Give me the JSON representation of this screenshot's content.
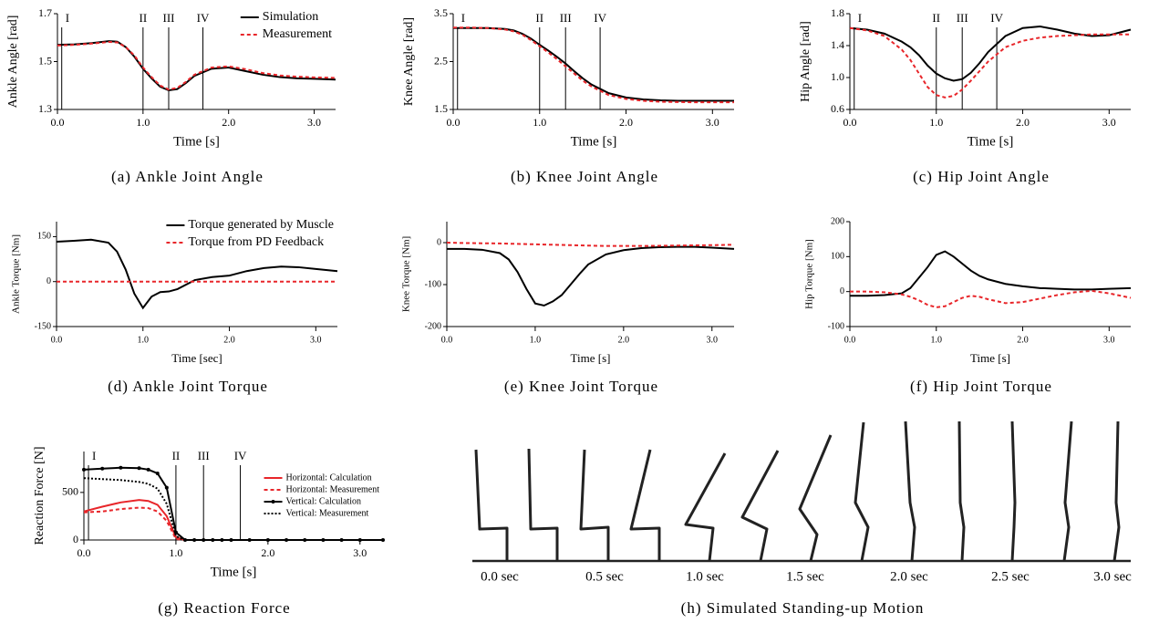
{
  "chart_data": [
    {
      "type": "line",
      "caption": "(a) Ankle Joint Angle",
      "xlabel": "Time [s]",
      "ylabel": "Ankle Angle [rad]",
      "x": [
        0,
        0.2,
        0.4,
        0.6,
        0.7,
        0.8,
        0.9,
        1.0,
        1.1,
        1.2,
        1.3,
        1.4,
        1.5,
        1.6,
        1.8,
        2.0,
        2.2,
        2.4,
        2.6,
        2.8,
        3.0,
        3.25
      ],
      "series": [
        {
          "name": "Simulation",
          "color": "#000000",
          "linestyle": "solid",
          "values": [
            1.57,
            1.572,
            1.577,
            1.585,
            1.583,
            1.56,
            1.52,
            1.47,
            1.43,
            1.395,
            1.38,
            1.385,
            1.41,
            1.44,
            1.47,
            1.475,
            1.46,
            1.445,
            1.435,
            1.43,
            1.428,
            1.425
          ]
        },
        {
          "name": "Measurement",
          "color": "#e8262a",
          "linestyle": "dashed",
          "values": [
            1.567,
            1.57,
            1.575,
            1.582,
            1.58,
            1.56,
            1.525,
            1.475,
            1.435,
            1.4,
            1.383,
            1.39,
            1.415,
            1.445,
            1.475,
            1.48,
            1.468,
            1.452,
            1.442,
            1.437,
            1.434,
            1.432
          ]
        }
      ],
      "xlim": [
        0,
        3.25
      ],
      "ylim": [
        1.3,
        1.7
      ],
      "xticks": [
        {
          "value": 0,
          "label": "0.0"
        },
        {
          "value": 1,
          "label": "1.0"
        },
        {
          "value": 2,
          "label": "2.0"
        },
        {
          "value": 3,
          "label": "3.0"
        }
      ],
      "yticks": [
        1.3,
        1.5,
        1.7
      ],
      "phases": [
        {
          "value": 0.05,
          "label": "I"
        },
        {
          "value": 1.0,
          "label": "II"
        },
        {
          "value": 1.3,
          "label": "III"
        },
        {
          "value": 1.7,
          "label": "IV"
        }
      ],
      "legend": "upper right"
    },
    {
      "type": "line",
      "caption": "(b) Knee Joint Angle",
      "xlabel": "Time [s]",
      "ylabel": "Knee Angle [rad]",
      "x": [
        0,
        0.2,
        0.4,
        0.6,
        0.7,
        0.8,
        0.9,
        1.0,
        1.1,
        1.2,
        1.3,
        1.4,
        1.5,
        1.6,
        1.8,
        2.0,
        2.2,
        2.4,
        2.6,
        2.8,
        3.0,
        3.25
      ],
      "series": [
        {
          "color": "#000000",
          "linestyle": "solid",
          "values": [
            3.2,
            3.2,
            3.2,
            3.18,
            3.15,
            3.08,
            2.98,
            2.85,
            2.73,
            2.6,
            2.46,
            2.3,
            2.15,
            2.02,
            1.84,
            1.75,
            1.71,
            1.69,
            1.68,
            1.68,
            1.68,
            1.68
          ]
        },
        {
          "color": "#e8262a",
          "linestyle": "dashed",
          "values": [
            3.21,
            3.21,
            3.2,
            3.17,
            3.13,
            3.06,
            2.95,
            2.82,
            2.69,
            2.55,
            2.4,
            2.25,
            2.1,
            1.98,
            1.8,
            1.72,
            1.68,
            1.66,
            1.655,
            1.65,
            1.65,
            1.65
          ]
        }
      ],
      "xlim": [
        0,
        3.25
      ],
      "ylim": [
        1.5,
        3.5
      ],
      "xticks": [
        {
          "value": 0,
          "label": "0.0"
        },
        {
          "value": 1,
          "label": "1.0"
        },
        {
          "value": 2,
          "label": "2.0"
        },
        {
          "value": 3,
          "label": "3.0"
        }
      ],
      "yticks": [
        1.5,
        2.5,
        3.5
      ],
      "phases": [
        {
          "value": 0.05,
          "label": "I"
        },
        {
          "value": 1.0,
          "label": "II"
        },
        {
          "value": 1.3,
          "label": "III"
        },
        {
          "value": 1.7,
          "label": "IV"
        }
      ]
    },
    {
      "type": "line",
      "caption": "(c) Hip Joint Angle",
      "xlabel": "Time [s]",
      "ylabel": "Hip Angle [rad]",
      "x": [
        0,
        0.2,
        0.4,
        0.6,
        0.7,
        0.8,
        0.9,
        1.0,
        1.1,
        1.2,
        1.3,
        1.4,
        1.5,
        1.6,
        1.8,
        2.0,
        2.2,
        2.4,
        2.6,
        2.8,
        3.0,
        3.25
      ],
      "series": [
        {
          "color": "#000000",
          "linestyle": "solid",
          "values": [
            1.62,
            1.6,
            1.55,
            1.45,
            1.38,
            1.28,
            1.15,
            1.05,
            0.99,
            0.96,
            0.98,
            1.06,
            1.18,
            1.32,
            1.52,
            1.62,
            1.64,
            1.6,
            1.55,
            1.52,
            1.53,
            1.6
          ]
        },
        {
          "color": "#e8262a",
          "linestyle": "dashed",
          "values": [
            1.62,
            1.59,
            1.52,
            1.35,
            1.22,
            1.05,
            0.88,
            0.78,
            0.75,
            0.77,
            0.85,
            0.96,
            1.08,
            1.2,
            1.38,
            1.46,
            1.5,
            1.52,
            1.53,
            1.54,
            1.54,
            1.54
          ]
        }
      ],
      "xlim": [
        0,
        3.25
      ],
      "ylim": [
        0.6,
        1.8
      ],
      "xticks": [
        {
          "value": 0,
          "label": "0.0"
        },
        {
          "value": 1,
          "label": "1.0"
        },
        {
          "value": 2,
          "label": "2.0"
        },
        {
          "value": 3,
          "label": "3.0"
        }
      ],
      "yticks": [
        0.6,
        {
          "value": 1,
          "label": "1.0"
        },
        1.4,
        1.8
      ],
      "phases": [
        {
          "value": 0.05,
          "label": "I"
        },
        {
          "value": 1.0,
          "label": "II"
        },
        {
          "value": 1.3,
          "label": "III"
        },
        {
          "value": 1.7,
          "label": "IV"
        }
      ]
    },
    {
      "type": "line",
      "caption": "(d) Ankle Joint Torque",
      "xlabel": "Time [sec]",
      "ylabel": "Ankle Torque [Nm]",
      "x": [
        0,
        0.2,
        0.4,
        0.6,
        0.7,
        0.8,
        0.9,
        1.0,
        1.1,
        1.2,
        1.3,
        1.4,
        1.5,
        1.6,
        1.8,
        2.0,
        2.2,
        2.4,
        2.6,
        2.8,
        3.0,
        3.25
      ],
      "series": [
        {
          "name": "Torque generated by Muscle",
          "color": "#000000",
          "linestyle": "solid",
          "values": [
            133,
            136,
            140,
            130,
            100,
            40,
            -40,
            -88,
            -50,
            -35,
            -33,
            -25,
            -10,
            5,
            15,
            20,
            35,
            45,
            50,
            48,
            42,
            35
          ]
        },
        {
          "name": "Torque from PD Feedback",
          "color": "#e8262a",
          "linestyle": "dashed",
          "values": [
            0,
            0,
            0,
            0,
            0,
            0,
            0,
            0,
            0,
            0,
            0,
            0,
            0,
            0,
            0,
            0,
            0,
            0,
            0,
            0,
            0,
            0
          ]
        }
      ],
      "xlim": [
        0,
        3.25
      ],
      "ylim": [
        -150,
        200
      ],
      "xticks": [
        {
          "value": 0,
          "label": "0.0"
        },
        {
          "value": 1,
          "label": "1.0"
        },
        {
          "value": 2,
          "label": "2.0"
        },
        {
          "value": 3,
          "label": "3.0"
        }
      ],
      "yticks": [
        -150,
        0,
        150
      ],
      "legend": "upper right"
    },
    {
      "type": "line",
      "caption": "(e) Knee Joint Torque",
      "xlabel": "Time [s]",
      "ylabel": "Knee Torque [Nm]",
      "x": [
        0,
        0.2,
        0.4,
        0.6,
        0.7,
        0.8,
        0.9,
        1.0,
        1.1,
        1.2,
        1.3,
        1.4,
        1.5,
        1.6,
        1.8,
        2.0,
        2.2,
        2.4,
        2.6,
        2.8,
        3.0,
        3.25
      ],
      "series": [
        {
          "color": "#000000",
          "linestyle": "solid",
          "values": [
            -15,
            -15,
            -17,
            -25,
            -40,
            -70,
            -110,
            -145,
            -150,
            -140,
            -125,
            -100,
            -75,
            -52,
            -28,
            -18,
            -13,
            -11,
            -10,
            -10,
            -12,
            -15
          ]
        },
        {
          "color": "#e8262a",
          "linestyle": "dashed",
          "values": [
            0,
            -1,
            -1.5,
            -2,
            -2.5,
            -3,
            -3.5,
            -4,
            -4.5,
            -5,
            -5.5,
            -6,
            -6.5,
            -7,
            -8,
            -8,
            -8,
            -7.5,
            -7,
            -6.5,
            -6,
            -5
          ]
        }
      ],
      "xlim": [
        0,
        3.25
      ],
      "ylim": [
        -200,
        50
      ],
      "xticks": [
        {
          "value": 0,
          "label": "0.0"
        },
        {
          "value": 1,
          "label": "1.0"
        },
        {
          "value": 2,
          "label": "2.0"
        },
        {
          "value": 3,
          "label": "3.0"
        }
      ],
      "yticks": [
        -200,
        -100,
        0
      ]
    },
    {
      "type": "line",
      "caption": "(f) Hip Joint Torque",
      "xlabel": "Time [s]",
      "ylabel": "Hip Torque [Nm]",
      "x": [
        0,
        0.2,
        0.4,
        0.6,
        0.7,
        0.8,
        0.9,
        1.0,
        1.1,
        1.2,
        1.3,
        1.4,
        1.5,
        1.6,
        1.8,
        2.0,
        2.2,
        2.4,
        2.6,
        2.8,
        3.0,
        3.25
      ],
      "series": [
        {
          "color": "#000000",
          "linestyle": "solid",
          "values": [
            -12,
            -12,
            -10,
            -5,
            10,
            40,
            70,
            105,
            115,
            100,
            80,
            60,
            45,
            35,
            22,
            15,
            10,
            8,
            6,
            6,
            8,
            10
          ]
        },
        {
          "color": "#e8262a",
          "linestyle": "dashed",
          "values": [
            0,
            0,
            -2,
            -8,
            -15,
            -25,
            -38,
            -45,
            -42,
            -30,
            -18,
            -12,
            -15,
            -22,
            -33,
            -30,
            -20,
            -10,
            -2,
            2,
            -5,
            -18
          ]
        }
      ],
      "xlim": [
        0,
        3.25
      ],
      "ylim": [
        -100,
        200
      ],
      "xticks": [
        {
          "value": 0,
          "label": "0.0"
        },
        {
          "value": 1,
          "label": "1.0"
        },
        {
          "value": 2,
          "label": "2.0"
        },
        {
          "value": 3,
          "label": "3.0"
        }
      ],
      "yticks": [
        -100,
        0,
        100,
        200
      ]
    },
    {
      "type": "line",
      "caption": "(g) Reaction Force",
      "xlabel": "Time [s]",
      "ylabel": "Reaction Force [N]",
      "x": [
        0,
        0.2,
        0.4,
        0.6,
        0.7,
        0.8,
        0.9,
        1.0,
        1.1,
        1.2,
        1.3,
        1.4,
        1.5,
        1.6,
        1.8,
        2.0,
        2.2,
        2.4,
        2.6,
        2.8,
        3.0,
        3.25
      ],
      "series": [
        {
          "name": "Horizontal: Calculation",
          "color": "#e8262a",
          "linestyle": "solid",
          "values": [
            300,
            350,
            395,
            420,
            410,
            370,
            250,
            30,
            0,
            0,
            0,
            0,
            0,
            0,
            0,
            0,
            0,
            0,
            0,
            0,
            0,
            0
          ]
        },
        {
          "name": "Horizontal: Measurement",
          "color": "#e8262a",
          "linestyle": "dashed",
          "values": [
            290,
            300,
            325,
            340,
            335,
            300,
            200,
            10,
            0,
            0,
            0,
            0,
            0,
            0,
            0,
            0,
            0,
            0,
            0,
            0,
            0,
            0
          ]
        },
        {
          "name": "Vertical: Calculation",
          "color": "#000000",
          "linestyle": "solid",
          "markers": true,
          "values": [
            740,
            750,
            760,
            755,
            740,
            700,
            550,
            80,
            0,
            0,
            0,
            0,
            0,
            0,
            0,
            0,
            0,
            0,
            0,
            0,
            0,
            0
          ]
        },
        {
          "name": "Vertical: Measurement",
          "color": "#000000",
          "linestyle": "dotted",
          "values": [
            650,
            640,
            630,
            610,
            590,
            540,
            380,
            40,
            0,
            0,
            0,
            0,
            0,
            0,
            0,
            0,
            0,
            0,
            0,
            0,
            0,
            0
          ]
        }
      ],
      "xlim": [
        0,
        3.25
      ],
      "ylim": [
        0,
        930
      ],
      "xticks": [
        {
          "value": 0,
          "label": "0.0"
        },
        {
          "value": 1,
          "label": "1.0"
        },
        {
          "value": 2,
          "label": "2.0"
        },
        {
          "value": 3,
          "label": "3.0"
        }
      ],
      "yticks": [
        0,
        500
      ],
      "phases": [
        {
          "value": 0.05,
          "label": "I"
        },
        {
          "value": 1.0,
          "label": "II"
        },
        {
          "value": 1.3,
          "label": "III"
        },
        {
          "value": 1.7,
          "label": "IV"
        }
      ],
      "legend": "center right"
    }
  ],
  "motion": {
    "caption": "(h) Simulated Standing-up Motion",
    "time_labels": [
      "0.0 sec",
      "0.5 sec",
      "1.0 sec",
      "1.5 sec",
      "2.0 sec",
      "2.5 sec",
      "3.0 sec"
    ]
  }
}
